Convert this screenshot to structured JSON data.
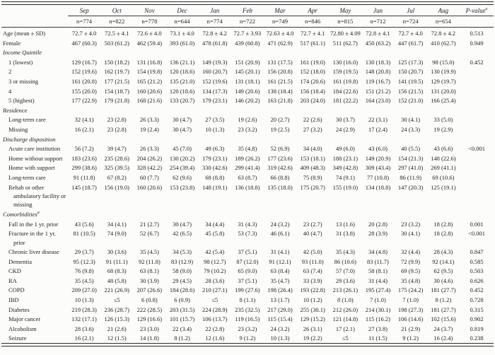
{
  "table": {
    "months": [
      "Sep",
      "Oct",
      "Nov",
      "Dec",
      "Jan",
      "Feb",
      "Mar",
      "Apr",
      "May",
      "Jun",
      "Jul",
      "Aug"
    ],
    "pvalue_header": {
      "label": "P-value",
      "superscript": "e"
    },
    "n_row": [
      "n=774",
      "n=822",
      "n=778",
      "n=644",
      "n=774",
      "n=722",
      "n=749",
      "n=846",
      "n=815",
      "n=712",
      "n=724",
      "n=654"
    ],
    "rows": [
      {
        "type": "data",
        "label": "Age (mean ± SD)",
        "indent": 0,
        "values": [
          "72.7 ± 4.0",
          "72.5 ± 4.1",
          "72.6 ± 4.0",
          "73.1 ± 4.0",
          "72.8 ± 4.2",
          "72.7 ± 3.93",
          "72.63 ± 4.0",
          "72.7 ± 4.1",
          "72.80 ± 4.09",
          "72.8 ± 4.1",
          "72.7 ± 4.0",
          "72.8 ± 4.2"
        ],
        "p": "0.513"
      },
      {
        "type": "data",
        "label": "Female",
        "indent": 0,
        "values": [
          "467 (60.3)",
          "503 (61.2)",
          "462 (59.4)",
          "393 (61.0)",
          "478 (61.8)",
          "439 (60.8)",
          "471 (62.9)",
          "517 (61.1)",
          "511 (62.7)",
          "450 (63.2)",
          "447 (61.7)",
          "410 (62.7)"
        ],
        "p": "0.949"
      },
      {
        "type": "section",
        "label": "Income Quintile",
        "superscript": ""
      },
      {
        "type": "data",
        "label": "1 (lowest)",
        "indent": 1,
        "values": [
          "129 (16.7)",
          "150 (18.2)",
          "131 (16.8)",
          "136 (21.1)",
          "149 (19.3)",
          "151 (20.9)",
          "131 (17.5)",
          "161 (19.0)",
          "130 (16.0)",
          "130 (18.3)",
          "125 (17.3)",
          "98 (15.0)"
        ],
        "p": "0.452"
      },
      {
        "type": "data",
        "label": "2",
        "indent": 1,
        "values": [
          "152 (19.6)",
          "162 (19.7)",
          "154 (19.8)",
          "120 (18.6)",
          "160 (20.7)",
          "145 (20.1)",
          "156 (20.8)",
          "152 (18.0)",
          "159 (19.5)",
          "148 (20.8)",
          "150 (20.7)",
          "130 (19.9)"
        ],
        "p": ""
      },
      {
        "type": "data",
        "label": "3 or missing",
        "indent": 1,
        "values": [
          "161 (20.8)",
          "177 (21.5)",
          "165 (21.2)",
          "135 (21.0)",
          "152 (19.6)",
          "131 (18.1)",
          "161 (21.5)",
          "174 (20.6)",
          "161 (19.8)",
          "119 (16.7)",
          "141 (19.5)",
          "129 (19.7)"
        ],
        "p": ""
      },
      {
        "type": "data",
        "label": "4",
        "indent": 1,
        "values": [
          "155 (20.0)",
          "154 (18.7)",
          "160 (20.6)",
          "120 (18.6)",
          "134 (17.3)",
          "149 (20.6)",
          "138 (18.4)",
          "156 (18.4)",
          "184 (22.6)",
          "151 (21.2)",
          "156 (21.5)",
          "131 (20.0)"
        ],
        "p": ""
      },
      {
        "type": "data",
        "label": "5 (highest)",
        "indent": 1,
        "values": [
          "177 (22.9)",
          "179 (21.8)",
          "168 (21.6)",
          "133 (20.7)",
          "179 (23.1)",
          "146 (20.2)",
          "163 (21.8)",
          "203 (24.0)",
          "181 (22.2)",
          "164 (23.0)",
          "152 (21.0)",
          "166 (25.4)"
        ],
        "p": ""
      },
      {
        "type": "section",
        "label": "Residence",
        "superscript": ""
      },
      {
        "type": "data",
        "label": "Long-term care",
        "indent": 1,
        "values": [
          "32 (4.1)",
          "23 (2.8)",
          "26 (3.3)",
          "30 (4.7)",
          "27 (3.5)",
          "19 (2.6)",
          "20 (2.7)",
          "22 (2.6)",
          "30 (3.7)",
          "22 (3.1)",
          "30 (4.1)",
          "33 (5.0)"
        ],
        "p": ""
      },
      {
        "type": "data",
        "label": "Missing",
        "indent": 1,
        "values": [
          "16 (2.1)",
          "23 (2.8)",
          "19 (2.4)",
          "30 (4.7)",
          "10 (1.3)",
          "23 (3.2)",
          "19 (2.5)",
          "27 (3.2)",
          "24 (2.9)",
          "17 (2.4)",
          "24 (3.3)",
          "19 (2.9)"
        ],
        "p": ""
      },
      {
        "type": "section",
        "label": "Discharge disposition",
        "superscript": ""
      },
      {
        "type": "data",
        "label": "Acute care institution",
        "indent": 1,
        "values": [
          "56 (7.2)",
          "39 (4.7)",
          "26 (3.3)",
          "45 (7.0)",
          "49 (6.3)",
          "35 (4.8)",
          "52 (6.9)",
          "34 (4.0)",
          "49 (6.0)",
          "43 (6.0)",
          "40 (5.5)",
          "43 (6.6)"
        ],
        "p": "<0.001"
      },
      {
        "type": "data",
        "label": "Home without support",
        "indent": 1,
        "values": [
          "183 (23.6)",
          "235 (28.6)",
          "204 (26.2)",
          "130 (20.2)",
          "179 (23.1)",
          "189 (26.2)",
          "177 (23.6)",
          "153 (18.1)",
          "188 (23.1)",
          "149 (20.9)",
          "154 (21.3)",
          "148 (22.6)"
        ],
        "p": ""
      },
      {
        "type": "data",
        "label": "Home with support",
        "indent": 1,
        "values": [
          "299 (38.6)",
          "325 (39.5)",
          "328 (42.2)",
          "254 (39.4)",
          "330 (42.6)",
          "299 (41.4)",
          "319 (42.6)",
          "409 (48.3)",
          "349 (42.8)",
          "309 (43.4)",
          "297 (41.0)",
          "269 (41.1)"
        ],
        "p": ""
      },
      {
        "type": "data",
        "label": "Long-term care",
        "indent": 1,
        "values": [
          "91 (11.8)",
          "67 (8.2)",
          "60 (7.7)",
          "62 (9.6)",
          "68 (8.8)",
          "63 (8.7)",
          "66 (8.8)",
          "75 (8.9)",
          "74 (9.1)",
          "77 (10.8)",
          "86 (11.9)",
          "69 (10.6)"
        ],
        "p": ""
      },
      {
        "type": "data",
        "label": "Rehab or other ambulatory facility or missing",
        "indent": 1,
        "values": [
          "145 (18.7)",
          "156 (19.0)",
          "160 (20.6)",
          "153 (23.8)",
          "148 (19.1)",
          "136 (18.8)",
          "135 (18.0)",
          "175 (20.7)",
          "155 (19.0)",
          "134 (18.8)",
          "147 (20.3)",
          "125 (19.1)"
        ],
        "p": ""
      },
      {
        "type": "section",
        "label": "Comorbidities",
        "superscript": "a"
      },
      {
        "type": "data",
        "label": "Fall in the 1 yr. prior",
        "indent": 1,
        "values": [
          "43 (5.6)",
          "34 (4.1)",
          "21 (2.7)",
          "30 (4.7)",
          "34 (4.4)",
          "31 (4.3)",
          "24 (3.2)",
          "23 (2.7)",
          "13 (1.6)",
          "20 (2.8)",
          "23 (3.2)",
          "18 (2.8)"
        ],
        "p": "0.001"
      },
      {
        "type": "data",
        "label": "Fracture in the 1 yr. prior",
        "indent": 1,
        "values": [
          "81 (10.5)",
          "74 (9.0)",
          "52 (6.7)",
          "42 (6.5)",
          "45 (5.8)",
          "53 (7.3)",
          "46 (6.1)",
          "40 (4.7)",
          "31 (3.8)",
          "28 (3.9)",
          "30 (4.1)",
          "18 (2.8)"
        ],
        "p": "<0.001"
      },
      {
        "type": "data",
        "label": "Chronic liver disease",
        "indent": 1,
        "values": [
          "29 (3.7)",
          "30 (3.6)",
          "35 (4.5)",
          "34 (5.3)",
          "42 (5.4)",
          "37 (5.1)",
          "31 (4.1)",
          "42 (5.0)",
          "35 (4.3)",
          "34 (4.8)",
          "32 (4.4)",
          "28 (4.3)"
        ],
        "p": "0.847"
      },
      {
        "type": "data",
        "label": "Dementia",
        "indent": 1,
        "values": [
          "95 (12.3)",
          "91 (11.1)",
          "92 (11.8)",
          "83 (12.9)",
          "98 (12.7)",
          "87 (12.0)",
          "91 (12.1)",
          "93 (11.0)",
          "86 (10.6)",
          "83 (11.7)",
          "72 (9.9)",
          "92 (14.1)"
        ],
        "p": "0.585"
      },
      {
        "type": "data",
        "label": "CKD",
        "indent": 1,
        "values": [
          "76 (9.8)",
          "68 (8.3)",
          "63 (8.1)",
          "58 (9.0)",
          "79 (10.2)",
          "65 (9.0)",
          "63 (8.4)",
          "63 (7.4)",
          "57 (7.0)",
          "58 (8.1)",
          "69 (9.5)",
          "62 (9.5)"
        ],
        "p": "0.503"
      },
      {
        "type": "data",
        "label": "RA",
        "indent": 1,
        "values": [
          "35 (4.5)",
          "48 (5.8)",
          "30 (3.9)",
          "29 (4.5)",
          "28 (3.6)",
          "37 (5.1)",
          "35 (4.7)",
          "33 (3.9)",
          "29 (3.6)",
          "31 (4.4)",
          "35 (4.8)",
          "30 (4.6)"
        ],
        "p": "0.626"
      },
      {
        "type": "data",
        "label": "COPD",
        "indent": 1,
        "values": [
          "209 (27.0)",
          "221 (26.9)",
          "207 (26.6)",
          "184 (28.6)",
          "210 (27.1)",
          "199 (27.6)",
          "198 (26.4)",
          "193 (22.8)",
          "213 (26.1)",
          "195 (27.4)",
          "175 (24.2)",
          "181 (27.7)"
        ],
        "p": "0.452"
      },
      {
        "type": "data",
        "label": "IBD",
        "indent": 1,
        "values": [
          "10 (1.3)",
          "≤5",
          "6 (0.8)",
          "6 (0.9)",
          "≤5",
          "8 (1.1)",
          "13 (1.7)",
          "10 (1.2)",
          "8 (1.0)",
          "7 (1.0)",
          "7 (1.0)",
          "8 (1.2)"
        ],
        "p": "0.728"
      },
      {
        "type": "data",
        "label": "Diabetes",
        "indent": 1,
        "values": [
          "219 (28.3)",
          "236 (28.7)",
          "222 (28.5)",
          "203 (31.5)",
          "224 (28.9)",
          "235 (32.5)",
          "217 (29.0)",
          "255 (30.1)",
          "212 (26.0)",
          "214 (30.1)",
          "198 (27.3)",
          "181 (27.7)"
        ],
        "p": "0.315"
      },
      {
        "type": "data",
        "label": "Major cancer",
        "indent": 1,
        "values": [
          "132 (17.1)",
          "126 (15.3)",
          "129 (16.6)",
          "101 (15.7)",
          "106 (13.7)",
          "119 (16.5)",
          "115 (15.4)",
          "129 (15.2)",
          "121 (14.8)",
          "115 (16.2)",
          "106 (14.6)",
          "102 (15.6)"
        ],
        "p": "0.902"
      },
      {
        "type": "data",
        "label": "Alcoholism",
        "indent": 1,
        "values": [
          "28 (3.6)",
          "21 (2.6)",
          "23 (3.0)",
          "22 (3.4)",
          "22 (2.8)",
          "23 (3.2)",
          "24 (3.2)",
          "26 (3.1)",
          "17 (2.1)",
          "27 (3.8)",
          "21 (2.9)",
          "24 (3.7)"
        ],
        "p": "0.819"
      },
      {
        "type": "data",
        "label": "Seizure",
        "indent": 1,
        "values": [
          "16 (2.1)",
          "12 (1.5)",
          "14 (1.8)",
          "8 (1.2)",
          "12 (1.6)",
          "9 (1.2)",
          "10 (1.3)",
          "19 (2.2)",
          "≤5",
          "11 (1.5)",
          "9 (1.2)",
          "16 (2.4)"
        ],
        "p": "0.238"
      }
    ]
  }
}
